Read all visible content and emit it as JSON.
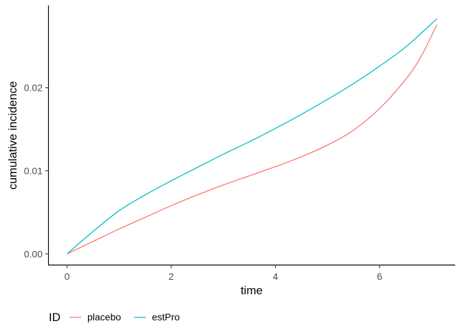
{
  "chart_data": {
    "type": "line",
    "xlabel": "time",
    "ylabel": "cumulative incidence",
    "xlim": [
      -0.35,
      7.45
    ],
    "ylim": [
      -0.0013,
      0.0299
    ],
    "xticks": [
      0,
      2,
      4,
      6
    ],
    "xtick_labels": [
      "0",
      "2",
      "4",
      "6"
    ],
    "yticks": [
      0,
      0.01,
      0.02
    ],
    "ytick_labels": [
      "0.00",
      "0.01",
      "0.02"
    ],
    "grid": false,
    "legend": {
      "title": "ID",
      "position": "bottom"
    },
    "series": [
      {
        "name": "placebo",
        "color": "#F8766D",
        "x": [
          0,
          0.5,
          1,
          1.5,
          2,
          2.5,
          3,
          3.5,
          4,
          4.5,
          5,
          5.5,
          6,
          6.5,
          6.8,
          7.1
        ],
        "y": [
          0,
          0.0015,
          0.003,
          0.0044,
          0.0058,
          0.0071,
          0.0083,
          0.0094,
          0.0105,
          0.0117,
          0.0131,
          0.0149,
          0.0175,
          0.021,
          0.0238,
          0.0276
        ]
      },
      {
        "name": "estPro",
        "color": "#00BFC4",
        "x": [
          0,
          0.5,
          1,
          1.5,
          2,
          2.5,
          3,
          3.5,
          4,
          4.5,
          5,
          5.5,
          6,
          6.5,
          7.1
        ],
        "y": [
          0,
          0.0027,
          0.0052,
          0.0071,
          0.0088,
          0.0104,
          0.012,
          0.0135,
          0.0151,
          0.0168,
          0.0186,
          0.0205,
          0.0226,
          0.0249,
          0.0283
        ]
      }
    ]
  }
}
